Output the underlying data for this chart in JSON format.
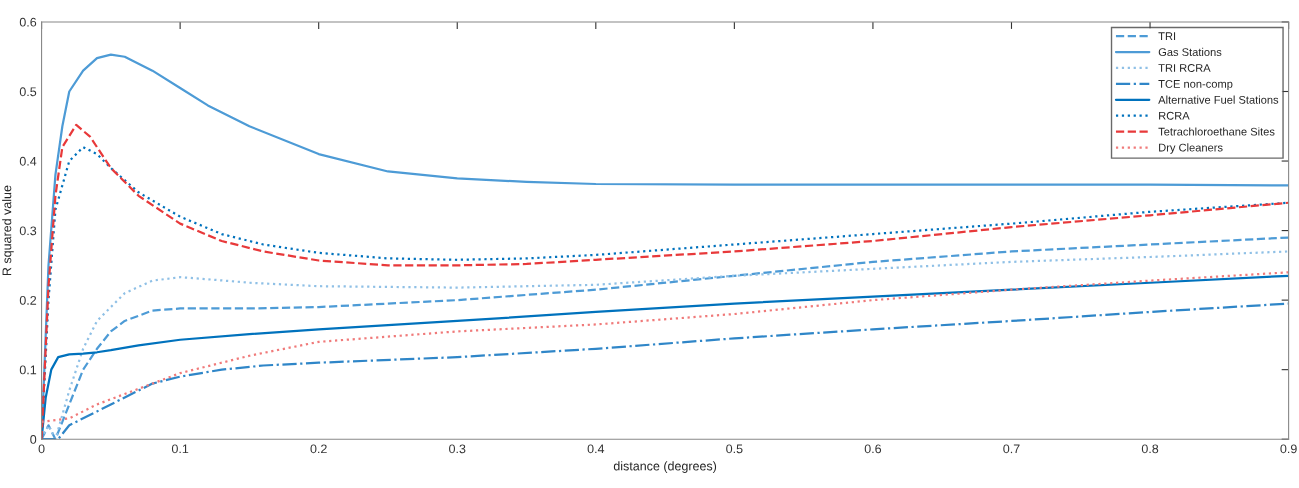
{
  "chart_data": {
    "type": "line",
    "xlabel": "distance (degrees)",
    "ylabel": "R squared value",
    "xlim": [
      0,
      0.9
    ],
    "xticks": [
      0,
      0.1,
      0.2,
      0.3,
      0.4,
      0.5,
      0.6,
      0.7,
      0.8,
      0.9
    ],
    "ylim": [
      0,
      0.6
    ],
    "yticks": [
      0,
      0.1,
      0.2,
      0.3,
      0.4,
      0.5,
      0.6
    ],
    "grid": false,
    "legend": "top right",
    "marker": "none",
    "series": [
      {
        "name": "TRI",
        "color": "#4d9bd6",
        "line_style": "dashed",
        "x": [
          0,
          0.005,
          0.01,
          0.02,
          0.03,
          0.04,
          0.05,
          0.06,
          0.08,
          0.1,
          0.15,
          0.2,
          0.3,
          0.4,
          0.5,
          0.6,
          0.7,
          0.8,
          0.9
        ],
        "values": [
          0,
          0.02,
          0,
          0.05,
          0.1,
          0.13,
          0.155,
          0.17,
          0.185,
          0.188,
          0.188,
          0.19,
          0.2,
          0.215,
          0.235,
          0.255,
          0.27,
          0.28,
          0.29
        ]
      },
      {
        "name": "Gas Stations",
        "color": "#4d9bd6",
        "line_style": "solid",
        "x": [
          0,
          0.005,
          0.01,
          0.015,
          0.02,
          0.03,
          0.04,
          0.05,
          0.06,
          0.08,
          0.1,
          0.12,
          0.15,
          0.2,
          0.25,
          0.3,
          0.35,
          0.4,
          0.5,
          0.6,
          0.7,
          0.8,
          0.9
        ],
        "values": [
          0,
          0.25,
          0.38,
          0.45,
          0.5,
          0.53,
          0.548,
          0.553,
          0.55,
          0.53,
          0.505,
          0.48,
          0.45,
          0.41,
          0.385,
          0.375,
          0.37,
          0.367,
          0.366,
          0.366,
          0.366,
          0.366,
          0.365
        ]
      },
      {
        "name": "TRI RCRA",
        "color": "#8fc0e6",
        "line_style": "dotted",
        "x": [
          0,
          0.005,
          0.01,
          0.02,
          0.03,
          0.04,
          0.06,
          0.08,
          0.1,
          0.12,
          0.15,
          0.2,
          0.3,
          0.4,
          0.5,
          0.6,
          0.7,
          0.8,
          0.9
        ],
        "values": [
          0,
          0.02,
          0,
          0.07,
          0.13,
          0.17,
          0.21,
          0.228,
          0.233,
          0.23,
          0.225,
          0.22,
          0.218,
          0.222,
          0.235,
          0.245,
          0.255,
          0.262,
          0.27
        ]
      },
      {
        "name": "TCE non-comp",
        "color": "#2f86c8",
        "line_style": "dashdot",
        "x": [
          0,
          0.012,
          0.02,
          0.04,
          0.06,
          0.08,
          0.1,
          0.13,
          0.16,
          0.2,
          0.3,
          0.4,
          0.5,
          0.6,
          0.7,
          0.8,
          0.9
        ],
        "values": [
          0,
          0,
          0.02,
          0.04,
          0.06,
          0.08,
          0.09,
          0.1,
          0.106,
          0.11,
          0.118,
          0.13,
          0.145,
          0.158,
          0.17,
          0.183,
          0.195
        ]
      },
      {
        "name": "Alternative Fuel Stations",
        "color": "#0072bd",
        "line_style": "solid",
        "x": [
          0,
          0.003,
          0.007,
          0.012,
          0.02,
          0.03,
          0.04,
          0.05,
          0.07,
          0.1,
          0.15,
          0.2,
          0.3,
          0.4,
          0.5,
          0.6,
          0.7,
          0.8,
          0.9
        ],
        "values": [
          0,
          0.06,
          0.1,
          0.118,
          0.122,
          0.123,
          0.125,
          0.128,
          0.135,
          0.143,
          0.151,
          0.158,
          0.17,
          0.183,
          0.195,
          0.205,
          0.215,
          0.225,
          0.235
        ]
      },
      {
        "name": "RCRA",
        "color": "#0072bd",
        "line_style": "dotted",
        "x": [
          0,
          0.005,
          0.01,
          0.02,
          0.03,
          0.04,
          0.05,
          0.07,
          0.1,
          0.13,
          0.16,
          0.2,
          0.25,
          0.3,
          0.35,
          0.4,
          0.5,
          0.6,
          0.7,
          0.8,
          0.9
        ],
        "values": [
          0,
          0.2,
          0.33,
          0.4,
          0.42,
          0.41,
          0.39,
          0.355,
          0.32,
          0.295,
          0.28,
          0.268,
          0.26,
          0.258,
          0.26,
          0.265,
          0.28,
          0.295,
          0.31,
          0.327,
          0.34
        ]
      },
      {
        "name": "Tetrachloroethane Sites",
        "color": "#e8393a",
        "line_style": "dashed",
        "x": [
          0,
          0.005,
          0.01,
          0.015,
          0.025,
          0.035,
          0.05,
          0.07,
          0.1,
          0.13,
          0.16,
          0.2,
          0.25,
          0.3,
          0.35,
          0.4,
          0.5,
          0.6,
          0.7,
          0.8,
          0.9
        ],
        "values": [
          0,
          0.22,
          0.35,
          0.42,
          0.452,
          0.435,
          0.39,
          0.35,
          0.31,
          0.285,
          0.27,
          0.257,
          0.25,
          0.25,
          0.252,
          0.258,
          0.27,
          0.285,
          0.305,
          0.322,
          0.34
        ]
      },
      {
        "name": "Dry Cleaners",
        "color": "#f07a7a",
        "line_style": "dotted",
        "x": [
          0,
          0.02,
          0.04,
          0.06,
          0.08,
          0.1,
          0.15,
          0.2,
          0.3,
          0.4,
          0.5,
          0.6,
          0.7,
          0.8,
          0.9
        ],
        "values": [
          0.025,
          0.03,
          0.05,
          0.065,
          0.08,
          0.095,
          0.12,
          0.14,
          0.155,
          0.165,
          0.18,
          0.2,
          0.215,
          0.228,
          0.24
        ]
      }
    ]
  }
}
